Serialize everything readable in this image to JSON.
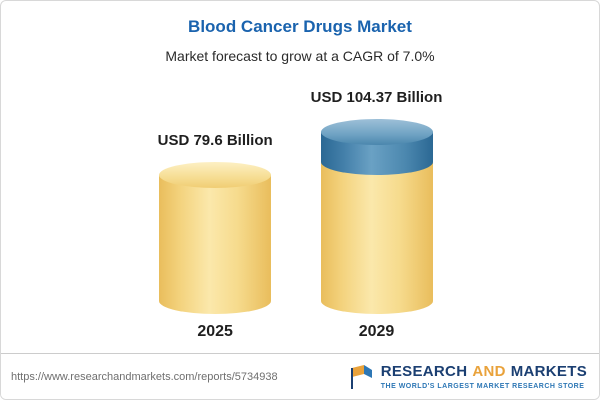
{
  "chart_data": {
    "type": "bar",
    "variant": "3d-cylinder",
    "title": "Blood Cancer Drugs Market",
    "subtitle": "Market forecast to grow at a CAGR of 7.0%",
    "categories": [
      "2025",
      "2029"
    ],
    "values": [
      79.6,
      104.37
    ],
    "unit": "USD Billion",
    "cagr_percent": 7.0,
    "bars": [
      {
        "category": "2025",
        "value": 79.6,
        "label": "USD 79.6 Billion",
        "color": "gold"
      },
      {
        "category": "2029",
        "value": 104.37,
        "label": "USD 104.37 Billion",
        "color": "gold",
        "growth_segment_color": "blue",
        "growth_segment_value": 24.77
      }
    ],
    "colors": {
      "gold_body": "#f3d27c",
      "gold_edge": "#e9bd5c",
      "blue_body": "#4c88af",
      "blue_edge": "#2b6894"
    },
    "legend": "none",
    "gridlines": false,
    "xlabel": "",
    "ylabel": ""
  },
  "brand": {
    "title_color": "#1a63ae",
    "logo_navy": "#1b3f72",
    "logo_gold": "#e9a23b",
    "tagline_blue": "#2d77b5"
  },
  "footer": {
    "url": "https://www.researchandmarkets.com/reports/5734938",
    "logo": {
      "word1": "RESEARCH",
      "word2": "AND",
      "word3": "MARKETS",
      "tagline": "THE WORLD'S LARGEST MARKET RESEARCH STORE"
    }
  }
}
